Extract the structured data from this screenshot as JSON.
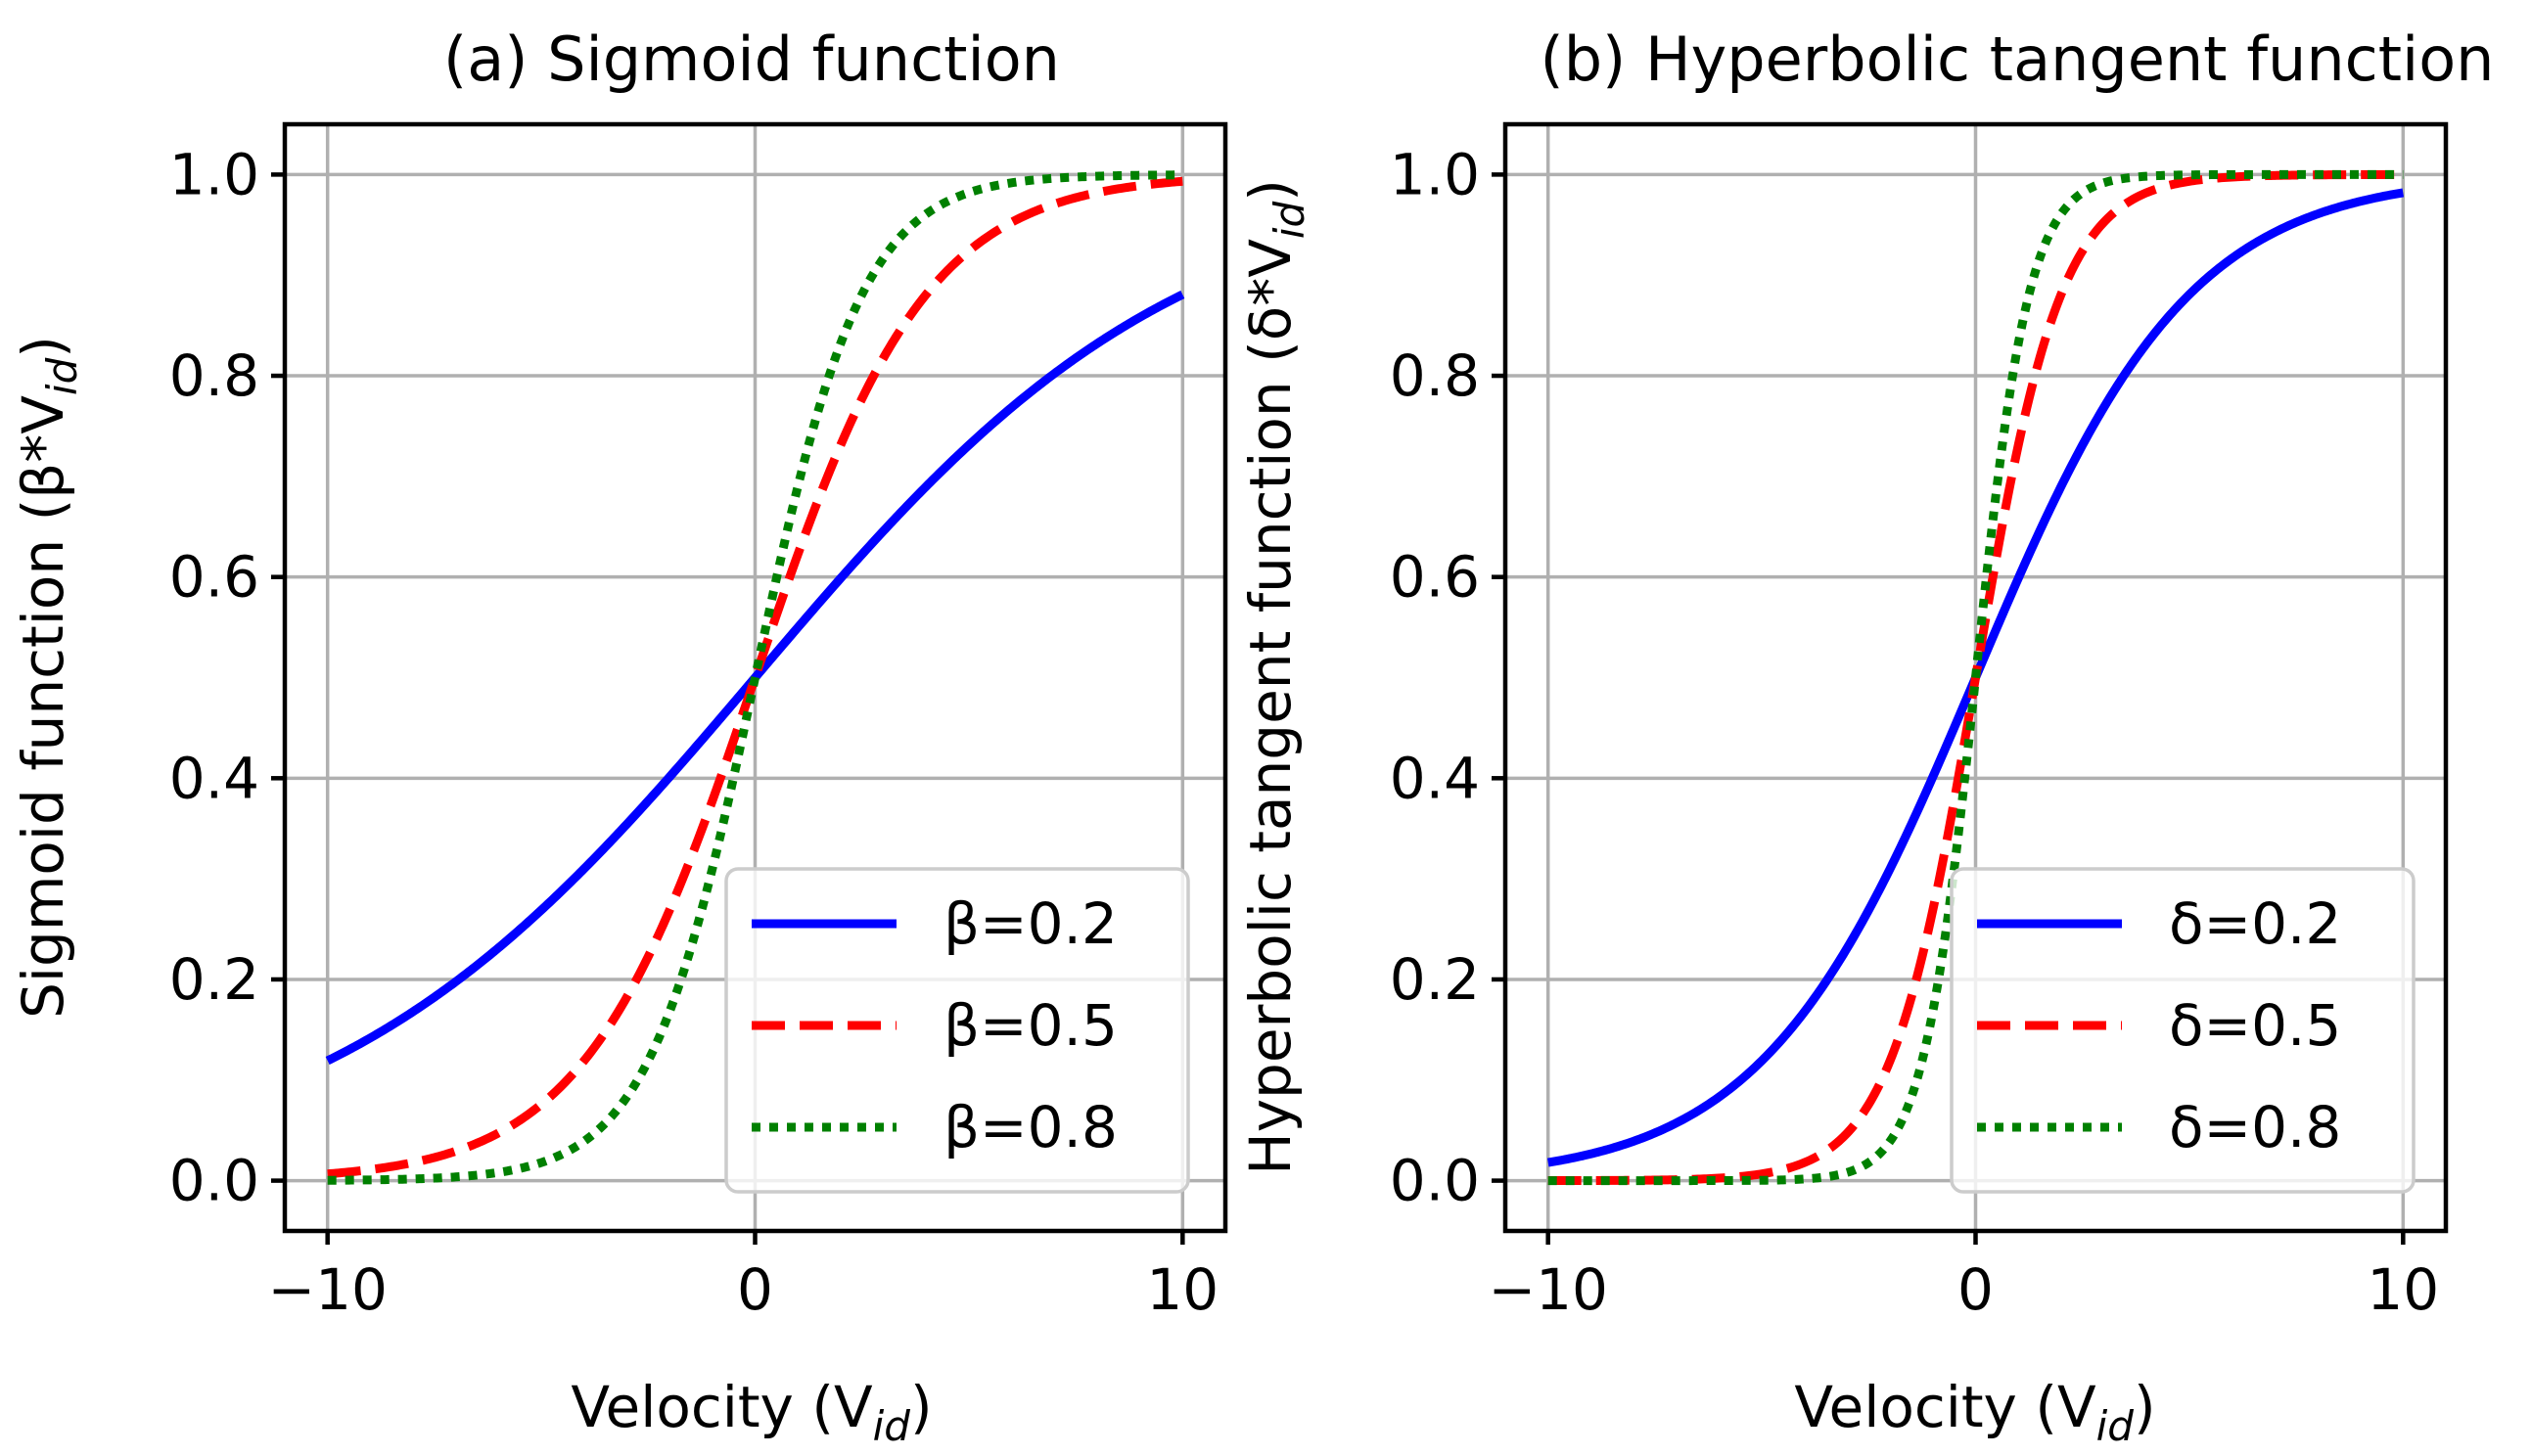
{
  "chart_data": [
    {
      "type": "line",
      "title": "(a) Sigmoid function",
      "xlabel": "Velocity (V",
      "xlabel_sub": "id",
      "xlabel_tail": ")",
      "ylabel": "Sigmoid function (β*V",
      "ylabel_sub": "id",
      "ylabel_tail": ")",
      "xlim": [
        -11,
        11
      ],
      "ylim": [
        -0.05,
        1.05
      ],
      "xticks": [
        -10,
        0,
        10
      ],
      "xtick_labels": [
        "−10",
        "0",
        "10"
      ],
      "yticks": [
        0.0,
        0.2,
        0.4,
        0.6,
        0.8,
        1.0
      ],
      "ytick_labels": [
        "0.0",
        "0.2",
        "0.4",
        "0.6",
        "0.8",
        "1.0"
      ],
      "grid": true,
      "legend_position": "lower-right",
      "function": "sigmoid",
      "x_range": [
        -10,
        10
      ],
      "series": [
        {
          "name": "β=0.2",
          "param": 0.2,
          "color": "#0000ff",
          "style": "solid"
        },
        {
          "name": "β=0.5",
          "param": 0.5,
          "color": "#ff0000",
          "style": "dashed"
        },
        {
          "name": "β=0.8",
          "param": 0.8,
          "color": "#008000",
          "style": "dotted"
        }
      ]
    },
    {
      "type": "line",
      "title": "(b) Hyperbolic tangent function",
      "xlabel": "Velocity (V",
      "xlabel_sub": "id",
      "xlabel_tail": ")",
      "ylabel": "Hyperbolic tangent function (δ*V",
      "ylabel_sub": "id",
      "ylabel_tail": ")",
      "xlim": [
        -11,
        11
      ],
      "ylim": [
        -0.05,
        1.05
      ],
      "xticks": [
        -10,
        0,
        10
      ],
      "xtick_labels": [
        "−10",
        "0",
        "10"
      ],
      "yticks": [
        0.0,
        0.2,
        0.4,
        0.6,
        0.8,
        1.0
      ],
      "ytick_labels": [
        "0.0",
        "0.2",
        "0.4",
        "0.6",
        "0.8",
        "1.0"
      ],
      "grid": true,
      "legend_position": "lower-right",
      "function": "tanh_scaled",
      "x_range": [
        -10,
        10
      ],
      "series": [
        {
          "name": "δ=0.2",
          "param": 0.2,
          "color": "#0000ff",
          "style": "solid"
        },
        {
          "name": "δ=0.5",
          "param": 0.5,
          "color": "#ff0000",
          "style": "dashed"
        },
        {
          "name": "δ=0.8",
          "param": 0.8,
          "color": "#008000",
          "style": "dotted"
        }
      ]
    }
  ]
}
